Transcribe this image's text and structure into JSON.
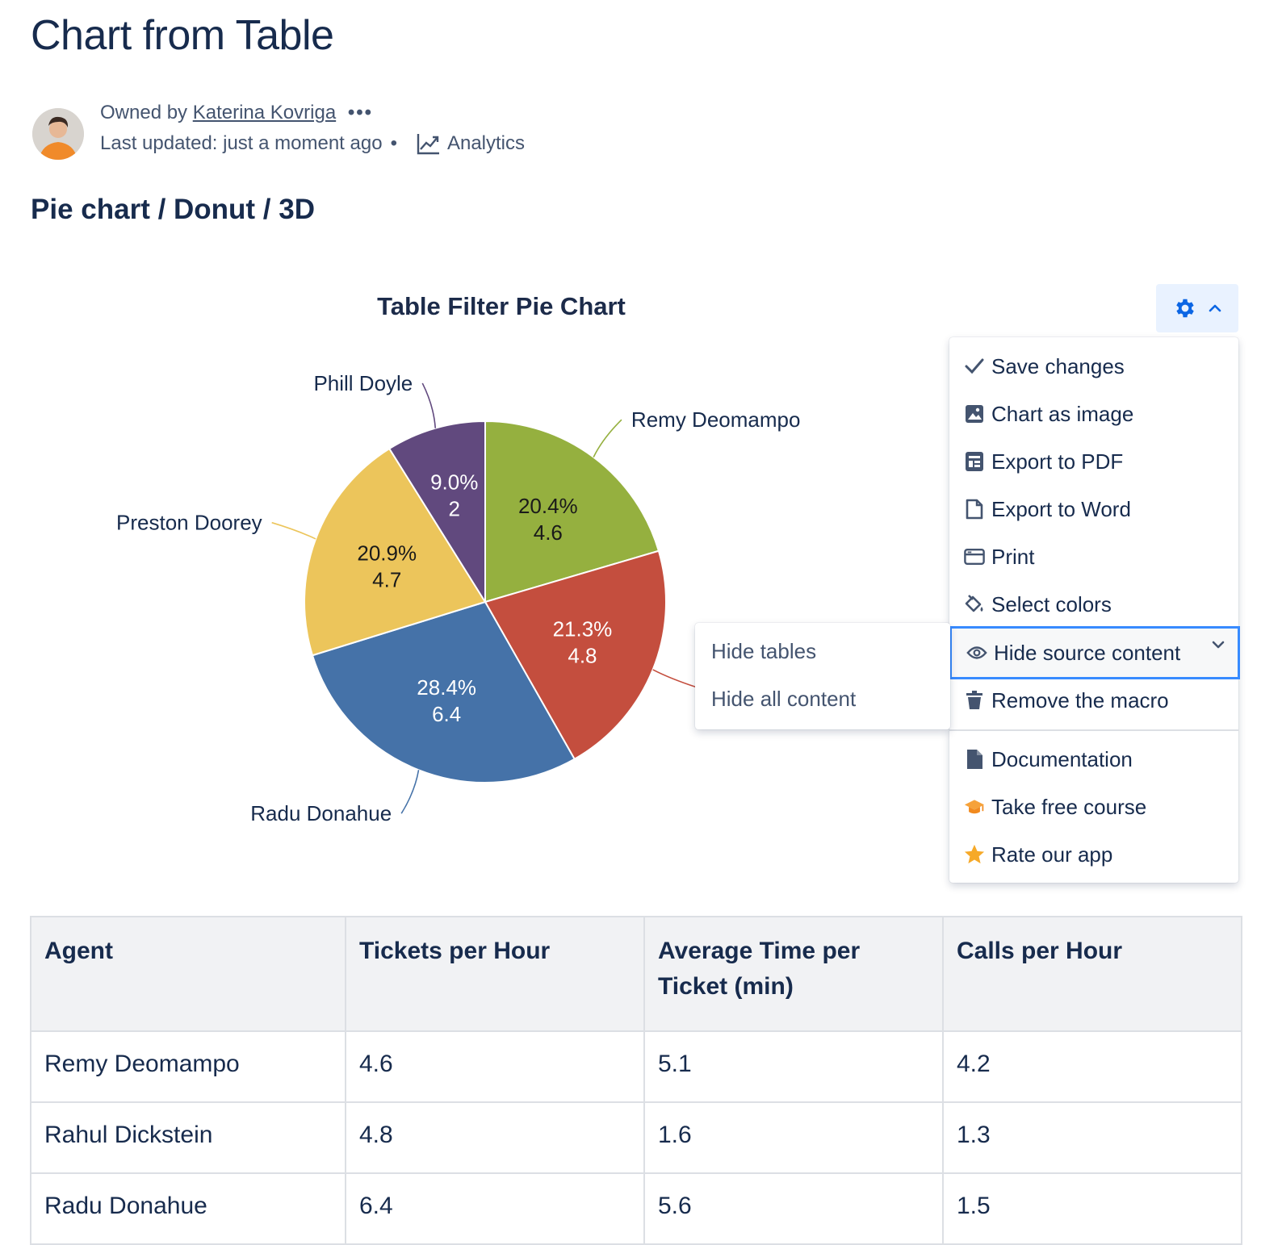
{
  "page": {
    "title": "Chart from Table",
    "owned_by_label": "Owned by",
    "owner_name": "Katerina Kovriga",
    "more_dots": "•••",
    "last_updated": "Last updated: just a moment ago",
    "meta_separator": "•",
    "analytics_label": "Analytics",
    "section_title": "Pie chart / Donut / 3D"
  },
  "chart_data": {
    "type": "pie",
    "title": "Table Filter Pie Chart",
    "categories": [
      "Remy Deomampo",
      "Rahul Dickstein",
      "Radu Donahue",
      "Preston Doorey",
      "Phill Doyle"
    ],
    "values": [
      4.6,
      4.8,
      6.4,
      4.7,
      2
    ],
    "value_labels": [
      "4.6",
      "4.8",
      "6.4",
      "4.7",
      "2"
    ],
    "percent_labels": [
      "20.4%",
      "21.3%",
      "28.4%",
      "20.9%",
      "9.0%"
    ],
    "outer_labels": [
      "Remy Deomampo",
      "",
      "Radu Donahue",
      "Preston Doorey",
      "Phill Doyle"
    ],
    "colors": [
      "#95b03f",
      "#c44e3e",
      "#4572a8",
      "#ecc55b",
      "#61497e"
    ],
    "label_colors": [
      "#1a1a1a",
      "#ffffff",
      "#ffffff",
      "#1a1a1a",
      "#ffffff"
    ],
    "legend": false
  },
  "toolbar": {
    "gear_icon": "gear-icon",
    "chevron_icon": "chevron-up-icon",
    "accent_color": "#0c66e4"
  },
  "menu": {
    "items": [
      {
        "label": "Save changes",
        "icon": "check-icon"
      },
      {
        "label": "Chart as image",
        "icon": "image-icon"
      },
      {
        "label": "Export to PDF",
        "icon": "pdf-icon"
      },
      {
        "label": "Export to Word",
        "icon": "document-icon"
      },
      {
        "label": "Print",
        "icon": "print-icon"
      },
      {
        "label": "Select colors",
        "icon": "paint-bucket-icon"
      },
      {
        "label": "Hide source content",
        "icon": "eye-icon"
      },
      {
        "label": "Remove the macro",
        "icon": "trash-icon"
      },
      {
        "label": "Documentation",
        "icon": "page-icon"
      },
      {
        "label": "Take free course",
        "icon": "graduation-cap-icon"
      },
      {
        "label": "Rate our app",
        "icon": "star-icon"
      }
    ],
    "active_item": "Hide source content"
  },
  "submenu": {
    "items": [
      {
        "label": "Hide tables"
      },
      {
        "label": "Hide all content"
      }
    ]
  },
  "table": {
    "headers": [
      "Agent",
      "Tickets per Hour",
      "Average Time per Ticket (min)",
      "Calls per Hour"
    ],
    "rows": [
      [
        "Remy Deomampo",
        "4.6",
        "5.1",
        "4.2"
      ],
      [
        "Rahul Dickstein",
        "4.8",
        "1.6",
        "1.3"
      ],
      [
        "Radu Donahue",
        "6.4",
        "5.6",
        "1.5"
      ]
    ]
  }
}
